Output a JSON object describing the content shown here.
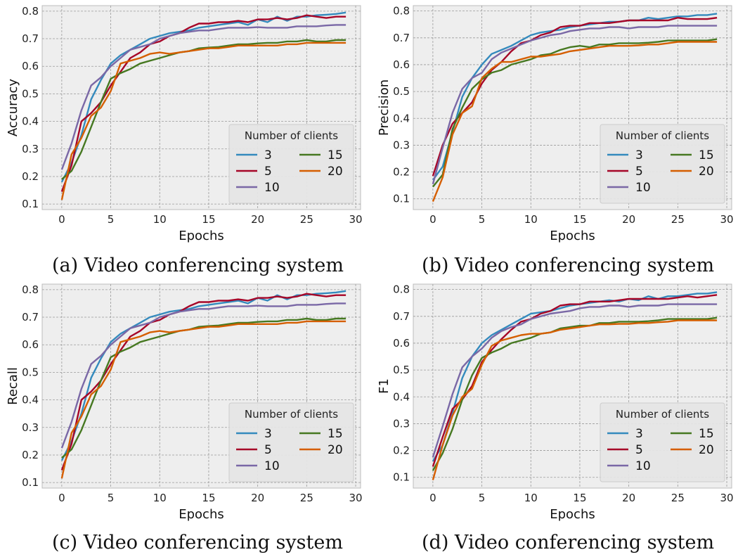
{
  "captions": {
    "a": "(a) Video conferencing system",
    "b": "(b) Video conferencing system",
    "c": "(c) Video conferencing system",
    "d": "(d) Video conferencing system"
  },
  "series_colors": {
    "3": "#348abd",
    "5": "#a60628",
    "10": "#7a68a6",
    "15": "#467821",
    "20": "#d55e00"
  },
  "chart_data": [
    {
      "type": "line",
      "id": "a",
      "xlabel": "Epochs",
      "ylabel": "Accuracy",
      "xlim": [
        -2,
        30.5
      ],
      "ylim": [
        0.08,
        0.82
      ],
      "xticks": [
        0,
        5,
        10,
        15,
        20,
        25,
        30
      ],
      "yticks": [
        0.1,
        0.2,
        0.3,
        0.4,
        0.5,
        0.6,
        0.7,
        0.8
      ],
      "legend": {
        "title": "Number of clients",
        "placement": "lower-right"
      },
      "grid": true,
      "x": [
        0,
        1,
        2,
        3,
        4,
        5,
        6,
        7,
        8,
        9,
        10,
        11,
        12,
        13,
        14,
        15,
        16,
        17,
        18,
        19,
        20,
        21,
        22,
        23,
        24,
        25,
        26,
        27,
        28,
        29
      ],
      "series": [
        {
          "name": "3",
          "values": [
            0.18,
            0.25,
            0.35,
            0.48,
            0.55,
            0.61,
            0.64,
            0.66,
            0.68,
            0.7,
            0.71,
            0.72,
            0.725,
            0.73,
            0.74,
            0.745,
            0.75,
            0.755,
            0.76,
            0.75,
            0.77,
            0.76,
            0.78,
            0.765,
            0.78,
            0.78,
            0.785,
            0.787,
            0.79,
            0.795
          ]
        },
        {
          "name": "5",
          "values": [
            0.145,
            0.24,
            0.4,
            0.43,
            0.47,
            0.53,
            0.58,
            0.63,
            0.65,
            0.68,
            0.69,
            0.71,
            0.72,
            0.74,
            0.755,
            0.755,
            0.76,
            0.76,
            0.765,
            0.76,
            0.77,
            0.77,
            0.775,
            0.77,
            0.775,
            0.785,
            0.78,
            0.775,
            0.78,
            0.78
          ]
        },
        {
          "name": "10",
          "values": [
            0.225,
            0.32,
            0.44,
            0.53,
            0.56,
            0.6,
            0.63,
            0.66,
            0.67,
            0.68,
            0.7,
            0.71,
            0.72,
            0.725,
            0.73,
            0.73,
            0.735,
            0.74,
            0.74,
            0.74,
            0.742,
            0.74,
            0.74,
            0.74,
            0.745,
            0.745,
            0.745,
            0.748,
            0.75,
            0.75
          ]
        },
        {
          "name": "15",
          "values": [
            0.19,
            0.22,
            0.29,
            0.38,
            0.47,
            0.555,
            0.575,
            0.59,
            0.61,
            0.62,
            0.63,
            0.64,
            0.65,
            0.655,
            0.665,
            0.668,
            0.67,
            0.675,
            0.68,
            0.68,
            0.683,
            0.685,
            0.685,
            0.69,
            0.69,
            0.695,
            0.69,
            0.69,
            0.695,
            0.695
          ]
        },
        {
          "name": "20",
          "values": [
            0.115,
            0.28,
            0.34,
            0.42,
            0.45,
            0.51,
            0.61,
            0.62,
            0.63,
            0.645,
            0.65,
            0.645,
            0.65,
            0.655,
            0.66,
            0.665,
            0.665,
            0.67,
            0.675,
            0.675,
            0.675,
            0.675,
            0.675,
            0.68,
            0.68,
            0.685,
            0.685,
            0.685,
            0.685,
            0.685
          ]
        }
      ]
    },
    {
      "type": "line",
      "id": "b",
      "xlabel": "Epochs",
      "ylabel": "Precision",
      "xlim": [
        -2,
        30.5
      ],
      "ylim": [
        0.06,
        0.82
      ],
      "xticks": [
        0,
        5,
        10,
        15,
        20,
        25,
        30
      ],
      "yticks": [
        0.1,
        0.2,
        0.3,
        0.4,
        0.5,
        0.6,
        0.7,
        0.8
      ],
      "legend": {
        "title": "Number of clients",
        "placement": "lower-right"
      },
      "grid": true,
      "x": [
        0,
        1,
        2,
        3,
        4,
        5,
        6,
        7,
        8,
        9,
        10,
        11,
        12,
        13,
        14,
        15,
        16,
        17,
        18,
        19,
        20,
        21,
        22,
        23,
        24,
        25,
        26,
        27,
        28,
        29
      ],
      "series": [
        {
          "name": "3",
          "values": [
            0.17,
            0.22,
            0.35,
            0.48,
            0.55,
            0.6,
            0.64,
            0.655,
            0.67,
            0.69,
            0.71,
            0.72,
            0.725,
            0.73,
            0.74,
            0.745,
            0.75,
            0.755,
            0.76,
            0.76,
            0.765,
            0.765,
            0.775,
            0.77,
            0.775,
            0.78,
            0.78,
            0.785,
            0.785,
            0.79
          ]
        },
        {
          "name": "5",
          "values": [
            0.185,
            0.3,
            0.38,
            0.42,
            0.46,
            0.53,
            0.58,
            0.61,
            0.65,
            0.68,
            0.69,
            0.71,
            0.72,
            0.74,
            0.745,
            0.745,
            0.755,
            0.755,
            0.755,
            0.76,
            0.765,
            0.765,
            0.765,
            0.765,
            0.765,
            0.775,
            0.77,
            0.77,
            0.77,
            0.775
          ]
        },
        {
          "name": "10",
          "values": [
            0.155,
            0.29,
            0.42,
            0.51,
            0.55,
            0.57,
            0.62,
            0.645,
            0.66,
            0.675,
            0.69,
            0.7,
            0.71,
            0.715,
            0.725,
            0.73,
            0.735,
            0.735,
            0.74,
            0.74,
            0.735,
            0.74,
            0.74,
            0.74,
            0.745,
            0.745,
            0.745,
            0.745,
            0.745,
            0.745
          ]
        },
        {
          "name": "15",
          "values": [
            0.145,
            0.19,
            0.36,
            0.44,
            0.51,
            0.545,
            0.57,
            0.58,
            0.6,
            0.61,
            0.62,
            0.635,
            0.64,
            0.655,
            0.665,
            0.67,
            0.665,
            0.675,
            0.675,
            0.68,
            0.68,
            0.68,
            0.682,
            0.685,
            0.69,
            0.69,
            0.69,
            0.69,
            0.69,
            0.695
          ]
        },
        {
          "name": "20",
          "values": [
            0.09,
            0.18,
            0.34,
            0.42,
            0.445,
            0.55,
            0.585,
            0.61,
            0.61,
            0.62,
            0.63,
            0.63,
            0.635,
            0.64,
            0.65,
            0.655,
            0.66,
            0.665,
            0.67,
            0.67,
            0.67,
            0.672,
            0.675,
            0.675,
            0.68,
            0.685,
            0.685,
            0.685,
            0.685,
            0.685
          ]
        }
      ]
    },
    {
      "type": "line",
      "id": "c",
      "xlabel": "Epochs",
      "ylabel": "Recall",
      "xlim": [
        -2,
        30.5
      ],
      "ylim": [
        0.08,
        0.82
      ],
      "xticks": [
        0,
        5,
        10,
        15,
        20,
        25,
        30
      ],
      "yticks": [
        0.1,
        0.2,
        0.3,
        0.4,
        0.5,
        0.6,
        0.7,
        0.8
      ],
      "legend": {
        "title": "Number of clients",
        "placement": "lower-right"
      },
      "grid": true,
      "x": [
        0,
        1,
        2,
        3,
        4,
        5,
        6,
        7,
        8,
        9,
        10,
        11,
        12,
        13,
        14,
        15,
        16,
        17,
        18,
        19,
        20,
        21,
        22,
        23,
        24,
        25,
        26,
        27,
        28,
        29
      ],
      "series": [
        {
          "name": "3",
          "values": [
            0.18,
            0.25,
            0.35,
            0.48,
            0.55,
            0.61,
            0.64,
            0.66,
            0.68,
            0.7,
            0.71,
            0.72,
            0.725,
            0.73,
            0.74,
            0.745,
            0.75,
            0.755,
            0.76,
            0.75,
            0.77,
            0.76,
            0.78,
            0.765,
            0.78,
            0.78,
            0.785,
            0.787,
            0.79,
            0.795
          ]
        },
        {
          "name": "5",
          "values": [
            0.145,
            0.24,
            0.4,
            0.43,
            0.47,
            0.53,
            0.58,
            0.63,
            0.65,
            0.68,
            0.69,
            0.71,
            0.72,
            0.74,
            0.755,
            0.755,
            0.76,
            0.76,
            0.765,
            0.76,
            0.77,
            0.77,
            0.775,
            0.77,
            0.775,
            0.785,
            0.78,
            0.775,
            0.78,
            0.78
          ]
        },
        {
          "name": "10",
          "values": [
            0.225,
            0.32,
            0.44,
            0.53,
            0.56,
            0.6,
            0.63,
            0.66,
            0.67,
            0.68,
            0.7,
            0.71,
            0.72,
            0.725,
            0.73,
            0.73,
            0.735,
            0.74,
            0.74,
            0.74,
            0.742,
            0.74,
            0.74,
            0.74,
            0.745,
            0.745,
            0.745,
            0.748,
            0.75,
            0.75
          ]
        },
        {
          "name": "15",
          "values": [
            0.19,
            0.22,
            0.29,
            0.38,
            0.47,
            0.555,
            0.575,
            0.59,
            0.61,
            0.62,
            0.63,
            0.64,
            0.65,
            0.655,
            0.665,
            0.668,
            0.67,
            0.675,
            0.68,
            0.68,
            0.683,
            0.685,
            0.685,
            0.69,
            0.69,
            0.695,
            0.69,
            0.69,
            0.695,
            0.695
          ]
        },
        {
          "name": "20",
          "values": [
            0.115,
            0.28,
            0.34,
            0.42,
            0.45,
            0.51,
            0.61,
            0.62,
            0.63,
            0.645,
            0.65,
            0.645,
            0.65,
            0.655,
            0.66,
            0.665,
            0.665,
            0.67,
            0.675,
            0.675,
            0.675,
            0.675,
            0.675,
            0.68,
            0.68,
            0.685,
            0.685,
            0.685,
            0.685,
            0.685
          ]
        }
      ]
    },
    {
      "type": "line",
      "id": "d",
      "xlabel": "Epochs",
      "ylabel": "F1",
      "xlim": [
        -2,
        30.5
      ],
      "ylim": [
        0.06,
        0.82
      ],
      "xticks": [
        0,
        5,
        10,
        15,
        20,
        25,
        30
      ],
      "yticks": [
        0.1,
        0.2,
        0.3,
        0.4,
        0.5,
        0.6,
        0.7,
        0.8
      ],
      "legend": {
        "title": "Number of clients",
        "placement": "lower-right"
      },
      "grid": true,
      "x": [
        0,
        1,
        2,
        3,
        4,
        5,
        6,
        7,
        8,
        9,
        10,
        11,
        12,
        13,
        14,
        15,
        16,
        17,
        18,
        19,
        20,
        21,
        22,
        23,
        24,
        25,
        26,
        27,
        28,
        29
      ],
      "series": [
        {
          "name": "3",
          "values": [
            0.16,
            0.22,
            0.34,
            0.47,
            0.55,
            0.6,
            0.63,
            0.65,
            0.67,
            0.69,
            0.71,
            0.715,
            0.72,
            0.73,
            0.74,
            0.745,
            0.75,
            0.755,
            0.76,
            0.755,
            0.765,
            0.76,
            0.775,
            0.765,
            0.775,
            0.775,
            0.78,
            0.785,
            0.785,
            0.79
          ]
        },
        {
          "name": "5",
          "values": [
            0.14,
            0.25,
            0.355,
            0.39,
            0.44,
            0.53,
            0.575,
            0.615,
            0.65,
            0.68,
            0.69,
            0.71,
            0.72,
            0.74,
            0.745,
            0.745,
            0.755,
            0.755,
            0.755,
            0.76,
            0.765,
            0.765,
            0.765,
            0.765,
            0.765,
            0.77,
            0.775,
            0.77,
            0.775,
            0.78
          ]
        },
        {
          "name": "10",
          "values": [
            0.175,
            0.29,
            0.41,
            0.51,
            0.55,
            0.58,
            0.62,
            0.645,
            0.66,
            0.67,
            0.69,
            0.7,
            0.71,
            0.715,
            0.72,
            0.73,
            0.735,
            0.735,
            0.74,
            0.74,
            0.735,
            0.74,
            0.74,
            0.74,
            0.745,
            0.745,
            0.745,
            0.745,
            0.745,
            0.745
          ]
        },
        {
          "name": "15",
          "values": [
            0.125,
            0.19,
            0.28,
            0.39,
            0.48,
            0.545,
            0.565,
            0.58,
            0.6,
            0.61,
            0.62,
            0.635,
            0.64,
            0.655,
            0.66,
            0.665,
            0.665,
            0.675,
            0.675,
            0.68,
            0.68,
            0.68,
            0.682,
            0.685,
            0.69,
            0.69,
            0.69,
            0.69,
            0.69,
            0.695
          ]
        },
        {
          "name": "20",
          "values": [
            0.09,
            0.22,
            0.33,
            0.4,
            0.43,
            0.52,
            0.59,
            0.61,
            0.62,
            0.63,
            0.635,
            0.635,
            0.64,
            0.65,
            0.655,
            0.66,
            0.665,
            0.67,
            0.67,
            0.672,
            0.672,
            0.675,
            0.675,
            0.678,
            0.68,
            0.685,
            0.685,
            0.685,
            0.685,
            0.685
          ]
        }
      ]
    }
  ]
}
